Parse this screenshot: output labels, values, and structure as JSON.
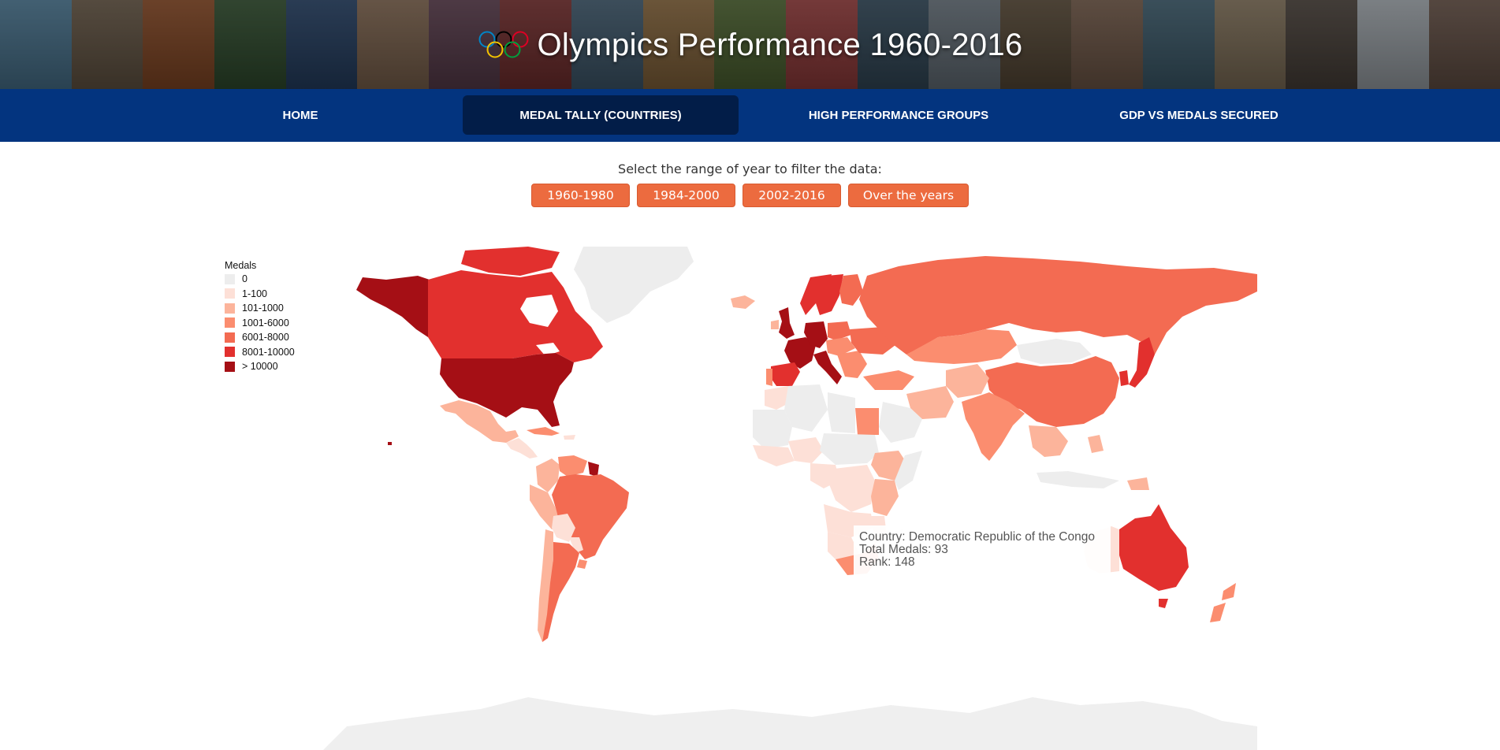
{
  "header": {
    "title": "Olympics Performance 1960-2016",
    "logo_icon": "olympic-rings-icon",
    "ring_colors": [
      "#0085c7",
      "#f4c300",
      "#000000",
      "#009f3d",
      "#df0024"
    ],
    "banner_tile_colors": [
      "#5b8fb0",
      "#7c6a55",
      "#a3592e",
      "#3c5f3a",
      "#2f4f7a",
      "#9a7b61",
      "#6e4b5e",
      "#8e3a3a",
      "#4f6e86",
      "#a37c4a",
      "#5f7a3d",
      "#b44a4a",
      "#3f5a6e",
      "#7d8a95",
      "#6b5a44",
      "#8a6d59",
      "#4c7185",
      "#9d8a6e",
      "#5a5048",
      "#c0c8cf",
      "#7b6356"
    ]
  },
  "nav": {
    "items": [
      {
        "label": "HOME",
        "active": false
      },
      {
        "label": "MEDAL TALLY (COUNTRIES)",
        "active": true
      },
      {
        "label": "HIGH PERFORMANCE GROUPS",
        "active": false
      },
      {
        "label": "GDP VS MEDALS SECURED",
        "active": false
      }
    ],
    "active_color": "#021d48",
    "bar_color": "#03347f"
  },
  "filter": {
    "label": "Select the range of year to filter the data:",
    "buttons": [
      "1960-1980",
      "1984-2000",
      "2002-2016",
      "Over the years"
    ],
    "button_color": "#ec6b3f"
  },
  "legend": {
    "title": "Medals",
    "items": [
      {
        "label": "0",
        "color": "#ededed"
      },
      {
        "label": "1-100",
        "color": "#fde0d7"
      },
      {
        "label": "101-1000",
        "color": "#fcb49b"
      },
      {
        "label": "1001-6000",
        "color": "#fb8d6f"
      },
      {
        "label": "6001-8000",
        "color": "#f36b52"
      },
      {
        "label": "8001-10000",
        "color": "#e2302e"
      },
      {
        "label": "> 10000",
        "color": "#a50f15"
      }
    ]
  },
  "tooltip": {
    "country": "Country: Democratic Republic of the Congo",
    "total_medals": "Total Medals: 93",
    "rank": "Rank: 148"
  }
}
